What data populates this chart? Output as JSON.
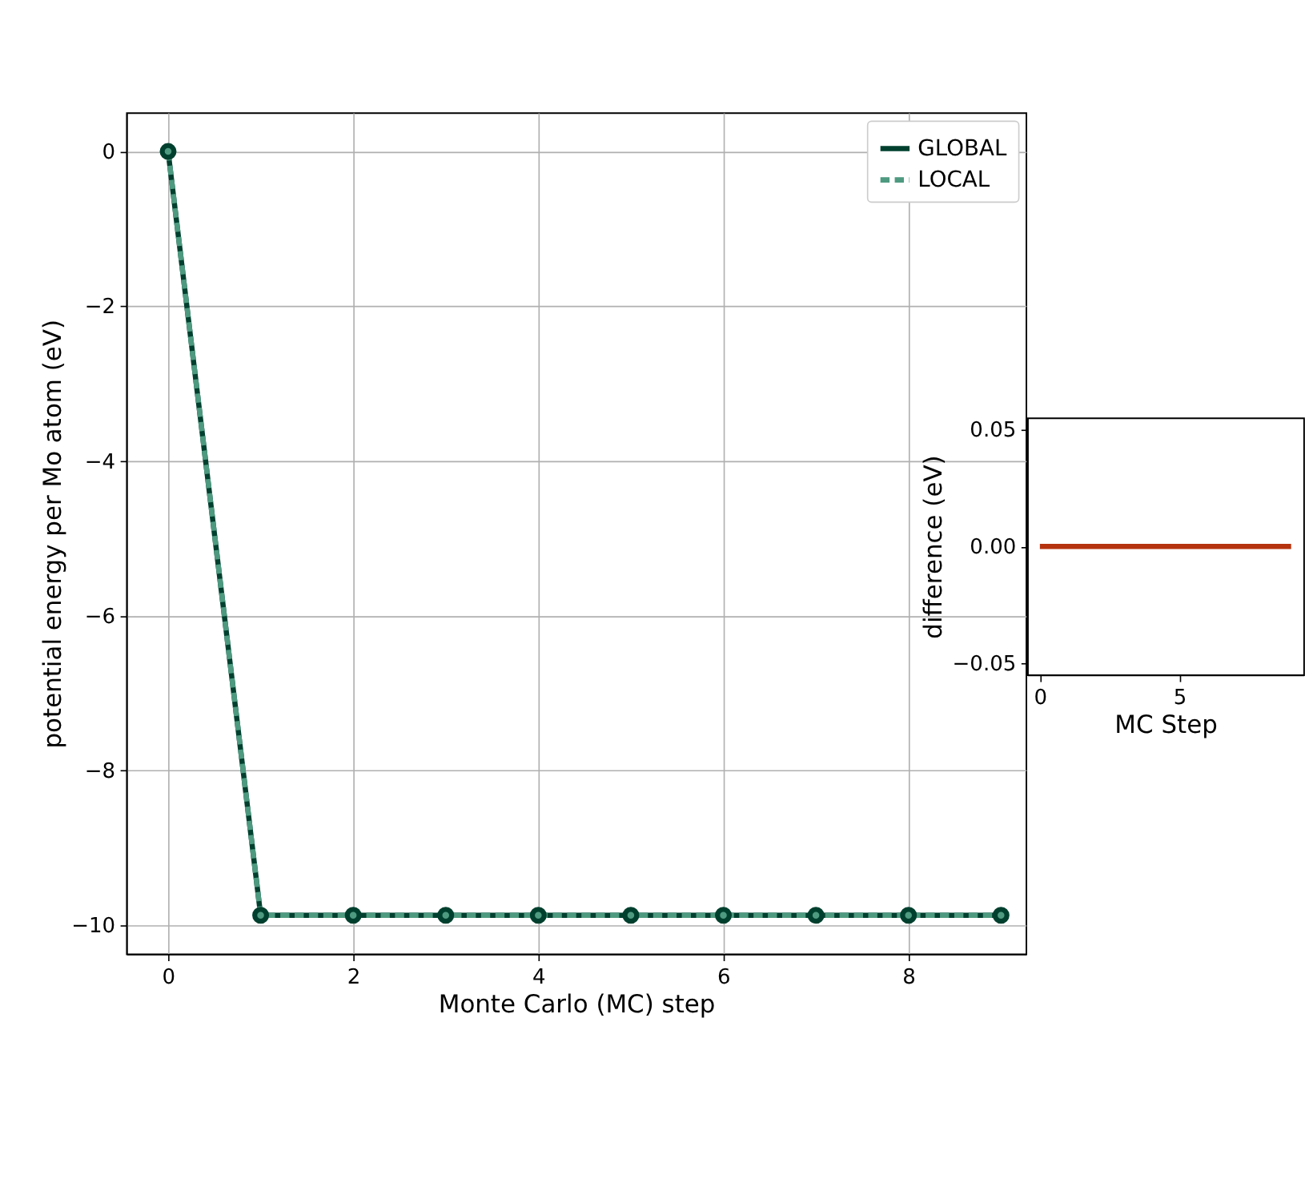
{
  "chart_data": [
    {
      "type": "line",
      "xlabel": "Monte Carlo (MC) step",
      "ylabel": "potential energy per Mo atom (eV)",
      "x": [
        0,
        1,
        2,
        3,
        4,
        5,
        6,
        7,
        8,
        9
      ],
      "series": [
        {
          "name": "GLOBAL",
          "color": "#00402e",
          "line_style": "solid",
          "marker": "circle",
          "values": [
            0,
            -9.87,
            -9.87,
            -9.87,
            -9.87,
            -9.87,
            -9.87,
            -9.87,
            -9.87,
            -9.87
          ]
        },
        {
          "name": "LOCAL",
          "color": "#4e9a80",
          "line_style": "dashed",
          "marker": "circle",
          "values": [
            0,
            -9.87,
            -9.87,
            -9.87,
            -9.87,
            -9.87,
            -9.87,
            -9.87,
            -9.87,
            -9.87
          ]
        }
      ],
      "xlim": [
        -0.45,
        9.27
      ],
      "ylim": [
        -10.37,
        0.5
      ],
      "xticks": [
        0,
        2,
        4,
        6,
        8
      ],
      "yticks": [
        -10,
        -8,
        -6,
        -4,
        -2,
        0
      ],
      "grid": true,
      "legend": "top right"
    },
    {
      "type": "line",
      "xlabel": "MC Step",
      "ylabel": "difference (eV)",
      "x": [
        0,
        1,
        2,
        3,
        4,
        5,
        6,
        7,
        8,
        9
      ],
      "series": [
        {
          "color": "#b5330e",
          "line_style": "solid",
          "values": [
            0,
            0,
            0,
            0,
            0,
            0,
            0,
            0,
            0,
            0
          ]
        }
      ],
      "xlim": [
        -0.45,
        9.45
      ],
      "ylim": [
        -0.055,
        0.055
      ],
      "xticks": [
        0,
        5
      ],
      "yticks": [
        -0.05,
        {
          "value": 0,
          "label": "0.00"
        },
        0.05
      ],
      "grid": false,
      "legend": false
    }
  ]
}
